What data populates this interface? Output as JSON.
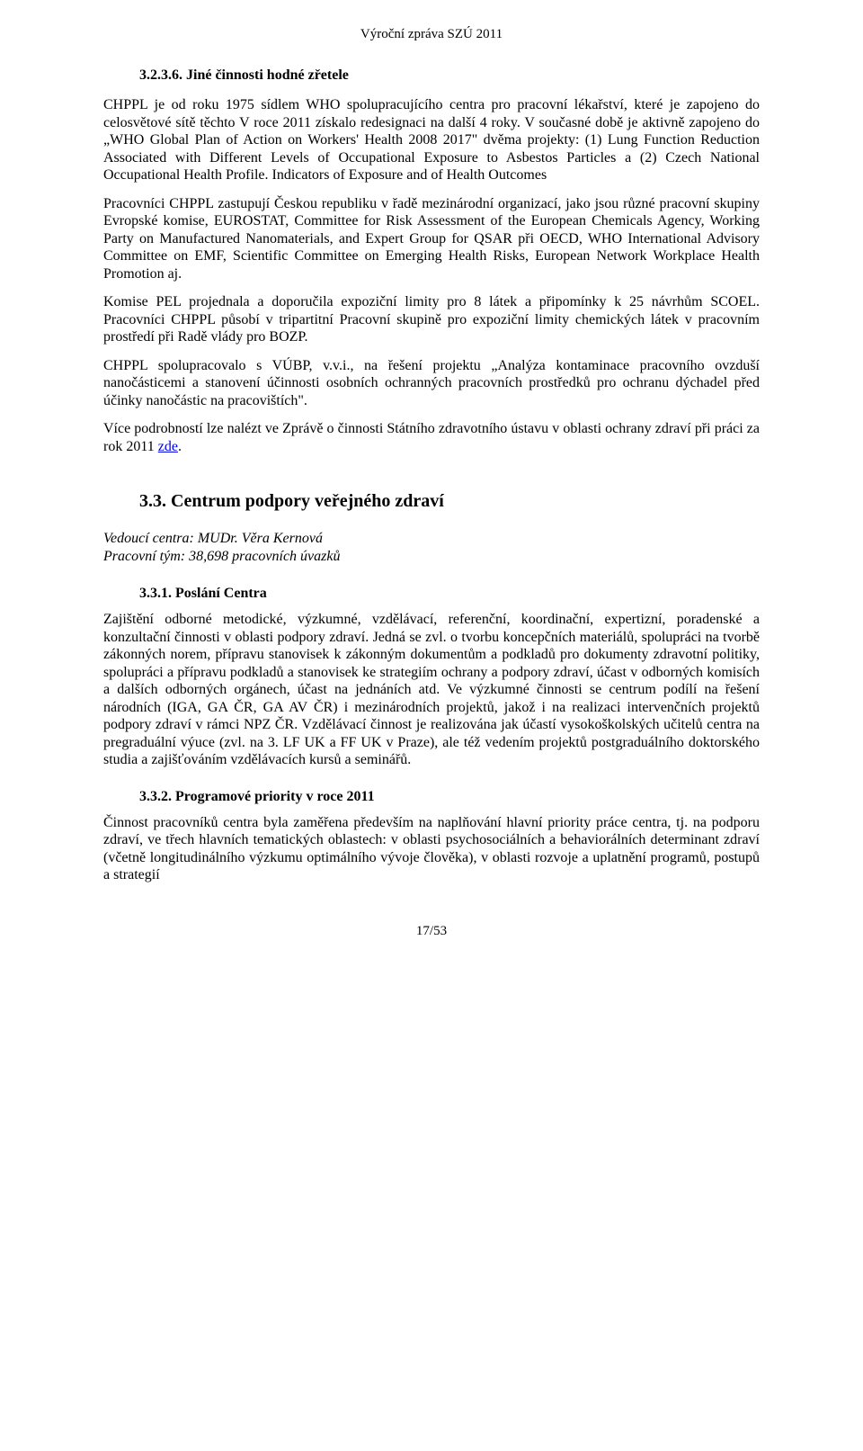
{
  "header": "Výroční zpráva SZÚ 2011",
  "s1_heading": "3.2.3.6.  Jiné činnosti hodné zřetele",
  "p1": "CHPPL je od roku 1975 sídlem WHO spolupracujícího centra pro pracovní lékařství, které je zapojeno do celosvětové sítě těchto V roce 2011 získalo redesignaci na další 4 roky. V současné době je aktivně zapojeno do „WHO Global Plan of Action on Workers' Health 2008 2017\" dvěma projekty: (1) Lung Function Reduction Associated with Different Levels of Occupational Exposure to Asbestos Particles a (2) Czech National Occupational Health Profile. Indicators of Exposure and of Health Outcomes",
  "p2": "Pracovníci CHPPL zastupují Českou republiku v řadě mezinárodní organizací, jako jsou různé pracovní skupiny Evropské komise, EUROSTAT, Committee for Risk Assessment of the European Chemicals Agency, Working Party on Manufactured Nanomaterials, and Expert Group for QSAR při OECD, WHO International Advisory Committee on EMF, Scientific Committee on Emerging Health Risks, European Network Workplace Health Promotion aj.",
  "p3": "Komise PEL projednala a doporučila expoziční limity pro 8 látek a připomínky k 25 návrhům SCOEL. Pracovníci CHPPL působí v tripartitní Pracovní skupině pro expoziční limity chemických látek v pracovním prostředí při Radě vlády pro BOZP.",
  "p4": "CHPPL spolupracovalo s VÚBP, v.v.i., na řešení projektu „Analýza kontaminace pracovního ovzduší nanočásticemi a stanovení účinnosti osobních ochranných pracovních prostředků pro ochranu dýchadel před účinky nanočástic na pracovištích\".",
  "p5_pre": "Více podrobností lze nalézt ve Zprávě o činnosti Státního zdravotního ústavu v oblasti ochrany zdraví při práci za rok 2011 ",
  "p5_link": "zde",
  "p5_post": ".",
  "h2": "3.3. Centrum podpory veřejného zdraví",
  "lead1": "Vedoucí centra: MUDr. Věra Kernová",
  "lead2": "Pracovní tým: 38,698 pracovních úvazků",
  "s331": "3.3.1.  Poslání Centra",
  "p6": "Zajištění odborné metodické, výzkumné, vzdělávací, referenční, koordinační, expertizní, poradenské a konzultační činnosti v oblasti podpory zdraví. Jedná se zvl. o tvorbu koncepčních materiálů, spolupráci na tvorbě zákonných norem, přípravu stanovisek k zákonným dokumentům a podkladů pro dokumenty zdravotní politiky, spolupráci a přípravu podkladů a stanovisek ke strategiím ochrany a podpory zdraví, účast v odborných komisích a dalších odborných orgánech, účast na jednáních atd. Ve výzkumné činnosti se centrum podílí na řešení národních (IGA, GA ČR, GA AV ČR) i mezinárodních projektů, jakož i na realizaci intervenčních projektů podpory zdraví v rámci NPZ ČR. Vzdělávací činnost je realizována jak účastí vysokoškolských učitelů centra na pregraduální výuce (zvl. na 3. LF UK a FF UK v Praze), ale též vedením projektů postgraduálního doktorského studia a zajišťováním vzdělávacích kursů a seminářů.",
  "s332": "3.3.2.  Programové priority v roce 2011",
  "p7": "Činnost pracovníků centra byla zaměřena především na naplňování hlavní priority práce centra, tj. na podporu zdraví, ve třech hlavních tematických oblastech: v oblasti psychosociálních a behaviorálních determinant zdraví (včetně longitudinálního výzkumu optimálního vývoje člověka), v oblasti rozvoje a uplatnění programů, postupů a strategií",
  "footer": "17/53"
}
